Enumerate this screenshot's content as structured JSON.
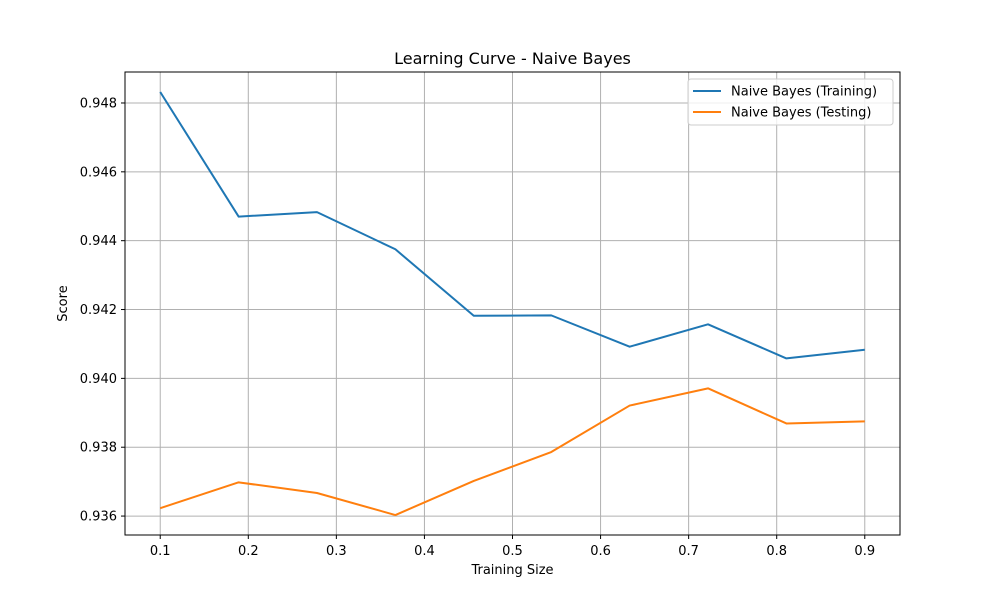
{
  "chart_data": {
    "type": "line",
    "title": "Learning Curve - Naive Bayes",
    "xlabel": "Training Size",
    "ylabel": "Score",
    "x": [
      0.1,
      0.189,
      0.278,
      0.367,
      0.456,
      0.544,
      0.633,
      0.722,
      0.811,
      0.9
    ],
    "xlim": [
      0.06,
      0.94
    ],
    "ylim": [
      0.93545,
      0.9489
    ],
    "xticks": [
      "0.1",
      "0.2",
      "0.3",
      "0.4",
      "0.5",
      "0.6",
      "0.7",
      "0.8",
      "0.9"
    ],
    "yticks": [
      "0.936",
      "0.938",
      "0.940",
      "0.942",
      "0.944",
      "0.946",
      "0.948"
    ],
    "grid": true,
    "legend_position": "top-right",
    "series": [
      {
        "name": "Naive Bayes (Training)",
        "color": "#1f77b4",
        "values": [
          0.94832,
          0.9447,
          0.94483,
          0.94375,
          0.94182,
          0.94183,
          0.94092,
          0.94157,
          0.94058,
          0.94083
        ]
      },
      {
        "name": "Naive Bayes (Testing)",
        "color": "#ff7f0e",
        "values": [
          0.93623,
          0.93698,
          0.93667,
          0.93603,
          0.93702,
          0.93786,
          0.93921,
          0.93971,
          0.93869,
          0.93875
        ]
      }
    ]
  }
}
